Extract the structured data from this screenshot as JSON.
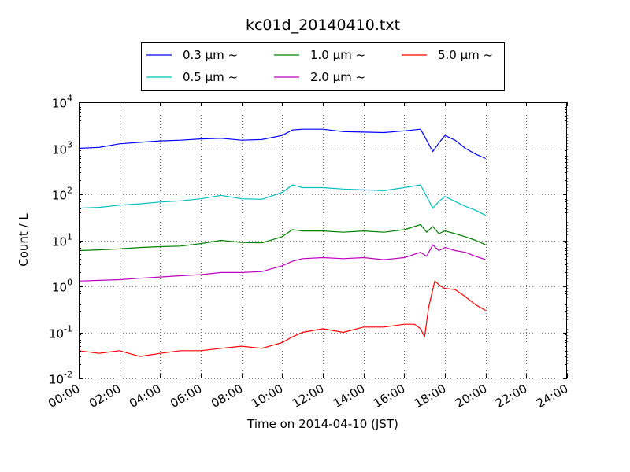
{
  "chart_data": {
    "type": "line",
    "title": "kc01d_20140410.txt",
    "xlabel": "Time on 2014-04-10 (JST)",
    "ylabel": "Count / L",
    "x_unit": "hours",
    "xlim": [
      0,
      24
    ],
    "ylim": [
      0.01,
      10000
    ],
    "y_scale": "log",
    "grid": true,
    "legend_position": "top, above plot",
    "x_ticks": [
      "00:00",
      "02:00",
      "04:00",
      "06:00",
      "08:00",
      "10:00",
      "12:00",
      "14:00",
      "16:00",
      "18:00",
      "20:00",
      "22:00",
      "24:00"
    ],
    "y_ticks": [
      {
        "base": "10",
        "exp": "-2"
      },
      {
        "base": "10",
        "exp": "-1"
      },
      {
        "base": "10",
        "exp": "0"
      },
      {
        "base": "10",
        "exp": "1"
      },
      {
        "base": "10",
        "exp": "2"
      },
      {
        "base": "10",
        "exp": "3"
      },
      {
        "base": "10",
        "exp": "4"
      }
    ],
    "series": [
      {
        "name": "0.3 μm ~",
        "color": "#0000ff",
        "x": [
          0,
          1,
          2,
          3,
          4,
          5,
          6,
          7,
          8,
          9,
          10,
          10.5,
          11,
          12,
          13,
          14,
          15,
          16,
          16.8,
          17.1,
          17.4,
          17.7,
          18,
          18.5,
          19,
          19.5,
          20
        ],
        "y": [
          1000,
          1050,
          1250,
          1350,
          1450,
          1500,
          1600,
          1650,
          1500,
          1550,
          1900,
          2500,
          2600,
          2600,
          2300,
          2250,
          2200,
          2400,
          2600,
          1500,
          850,
          1300,
          1900,
          1500,
          1000,
          750,
          600
        ]
      },
      {
        "name": "0.5 μm ~",
        "color": "#00bfbf",
        "x": [
          0,
          1,
          2,
          3,
          4,
          5,
          6,
          7,
          8,
          9,
          10,
          10.5,
          11,
          12,
          13,
          14,
          15,
          16,
          16.8,
          17.1,
          17.4,
          17.7,
          18,
          18.5,
          19,
          19.5,
          20
        ],
        "y": [
          50,
          52,
          58,
          62,
          68,
          72,
          80,
          95,
          80,
          78,
          110,
          160,
          140,
          140,
          130,
          125,
          120,
          140,
          160,
          90,
          50,
          70,
          90,
          70,
          55,
          45,
          35
        ]
      },
      {
        "name": "1.0 μm ~",
        "color": "#008000",
        "x": [
          0,
          1,
          2,
          3,
          4,
          5,
          6,
          7,
          8,
          9,
          10,
          10.5,
          11,
          12,
          13,
          14,
          15,
          16,
          16.8,
          17.1,
          17.4,
          17.7,
          18,
          18.5,
          19,
          19.5,
          20
        ],
        "y": [
          6,
          6.2,
          6.5,
          7,
          7.3,
          7.5,
          8.5,
          10,
          9,
          8.8,
          12,
          17,
          16,
          16,
          15,
          16,
          15,
          17,
          22,
          15,
          20,
          14,
          16,
          14,
          12,
          10,
          8
        ]
      },
      {
        "name": "2.0 μm ~",
        "color": "#bf00bf",
        "x": [
          0,
          1,
          2,
          3,
          4,
          5,
          6,
          7,
          8,
          9,
          10,
          10.5,
          11,
          12,
          13,
          14,
          15,
          16,
          16.8,
          17.1,
          17.4,
          17.7,
          18,
          18.5,
          19,
          19.5,
          20
        ],
        "y": [
          1.3,
          1.35,
          1.4,
          1.5,
          1.6,
          1.7,
          1.8,
          2,
          2,
          2.1,
          2.8,
          3.5,
          4,
          4.2,
          4,
          4.2,
          3.8,
          4.2,
          5.5,
          4.5,
          8,
          6,
          7,
          6,
          5.5,
          4.5,
          3.8
        ]
      },
      {
        "name": "5.0 μm ~",
        "color": "#ff0000",
        "x": [
          0,
          1,
          2,
          3,
          4,
          5,
          6,
          7,
          8,
          9,
          10,
          10.5,
          11,
          12,
          13,
          14,
          15,
          16,
          16.5,
          16.8,
          17,
          17.2,
          17.5,
          17.8,
          18,
          18.5,
          19,
          19.5,
          20
        ],
        "y": [
          0.04,
          0.035,
          0.04,
          0.03,
          0.035,
          0.04,
          0.04,
          0.045,
          0.05,
          0.045,
          0.06,
          0.08,
          0.1,
          0.12,
          0.1,
          0.13,
          0.13,
          0.15,
          0.15,
          0.12,
          0.08,
          0.35,
          1.3,
          1.0,
          0.9,
          0.85,
          0.6,
          0.4,
          0.3
        ]
      }
    ]
  }
}
